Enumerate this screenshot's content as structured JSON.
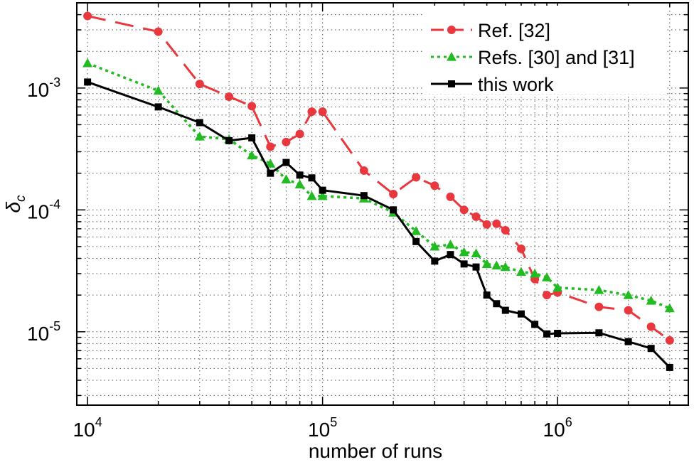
{
  "chart_data": {
    "type": "line",
    "title": "",
    "xlabel": "number of runs",
    "ylabel_base": "δ",
    "ylabel_sub": "c",
    "xscale": "log",
    "yscale": "log",
    "xlim": [
      9000,
      3600000
    ],
    "ylim": [
      2.5e-06,
      0.005
    ],
    "grid": true,
    "legend_position": "top-right",
    "x_ticks": [
      {
        "value": 10000,
        "base": "10",
        "exp": "4"
      },
      {
        "value": 100000,
        "base": "10",
        "exp": "5"
      },
      {
        "value": 1000000,
        "base": "10",
        "exp": "6"
      }
    ],
    "y_ticks": [
      {
        "value": 0.001,
        "base": "10",
        "exp": "-3"
      },
      {
        "value": 0.0001,
        "base": "10",
        "exp": "-4"
      },
      {
        "value": 1e-05,
        "base": "10",
        "exp": "-5"
      }
    ],
    "series": [
      {
        "name": "Ref. [32]",
        "color": "#e8383d",
        "dash": "26,14",
        "marker": "circle",
        "points": [
          [
            10000,
            0.0039
          ],
          [
            20000,
            0.0029
          ],
          [
            30000,
            0.00108
          ],
          [
            40000,
            0.00085
          ],
          [
            50000,
            0.00071
          ],
          [
            60000,
            0.00033
          ],
          [
            70000,
            0.00036
          ],
          [
            80000,
            0.00042
          ],
          [
            90000,
            0.00064
          ],
          [
            100000,
            0.00064
          ],
          [
            150000,
            0.00021
          ],
          [
            200000,
            0.000135
          ],
          [
            250000,
            0.000185
          ],
          [
            300000,
            0.000158
          ],
          [
            350000,
            0.000128
          ],
          [
            400000,
            0.0001
          ],
          [
            450000,
            8.8e-05
          ],
          [
            500000,
            7.6e-05
          ],
          [
            550000,
            7.7e-05
          ],
          [
            600000,
            6.8e-05
          ],
          [
            700000,
            4.8e-05
          ],
          [
            800000,
            2.7e-05
          ],
          [
            900000,
            2e-05
          ],
          [
            1000000,
            2.1e-05
          ],
          [
            1500000,
            1.6e-05
          ],
          [
            2000000,
            1.5e-05
          ],
          [
            2500000,
            1.1e-05
          ],
          [
            3000000,
            8.5e-06
          ]
        ]
      },
      {
        "name": "Refs. [30] and [31]",
        "color": "#22bb22",
        "dash": "4,5",
        "marker": "triangle",
        "points": [
          [
            10000,
            0.0016
          ],
          [
            20000,
            0.00095
          ],
          [
            30000,
            0.0004
          ],
          [
            40000,
            0.00038
          ],
          [
            50000,
            0.00028
          ],
          [
            60000,
            0.00024
          ],
          [
            70000,
            0.000178
          ],
          [
            80000,
            0.000162
          ],
          [
            90000,
            0.00013
          ],
          [
            100000,
            0.00013
          ],
          [
            150000,
            0.000124
          ],
          [
            200000,
            9.5e-05
          ],
          [
            250000,
            6.7e-05
          ],
          [
            300000,
            5e-05
          ],
          [
            350000,
            5.2e-05
          ],
          [
            400000,
            4.5e-05
          ],
          [
            450000,
            4.4e-05
          ],
          [
            500000,
            3.6e-05
          ],
          [
            550000,
            3.5e-05
          ],
          [
            600000,
            3.4e-05
          ],
          [
            700000,
            3.1e-05
          ],
          [
            800000,
            3e-05
          ],
          [
            900000,
            2.8e-05
          ],
          [
            1000000,
            2.3e-05
          ],
          [
            1500000,
            2.2e-05
          ],
          [
            2000000,
            2e-05
          ],
          [
            2500000,
            1.8e-05
          ],
          [
            3000000,
            1.56e-05
          ]
        ]
      },
      {
        "name": "this work",
        "color": "#000000",
        "dash": "",
        "marker": "square",
        "points": [
          [
            10000,
            0.00112
          ],
          [
            20000,
            0.0007
          ],
          [
            30000,
            0.00052
          ],
          [
            40000,
            0.00037
          ],
          [
            50000,
            0.00039
          ],
          [
            60000,
            0.0002
          ],
          [
            70000,
            0.000245
          ],
          [
            80000,
            0.000193
          ],
          [
            90000,
            0.000183
          ],
          [
            100000,
            0.000145
          ],
          [
            150000,
            0.000131
          ],
          [
            200000,
            0.0001
          ],
          [
            250000,
            5.5e-05
          ],
          [
            300000,
            3.8e-05
          ],
          [
            350000,
            4.3e-05
          ],
          [
            400000,
            3.6e-05
          ],
          [
            450000,
            3.4e-05
          ],
          [
            500000,
            2e-05
          ],
          [
            550000,
            1.7e-05
          ],
          [
            600000,
            1.5e-05
          ],
          [
            700000,
            1.4e-05
          ],
          [
            800000,
            1.15e-05
          ],
          [
            900000,
            9.6e-06
          ],
          [
            1000000,
            9.7e-06
          ],
          [
            1500000,
            9.8e-06
          ],
          [
            2000000,
            8.3e-06
          ],
          [
            2500000,
            7.3e-06
          ],
          [
            3000000,
            5.1e-06
          ]
        ]
      }
    ]
  }
}
